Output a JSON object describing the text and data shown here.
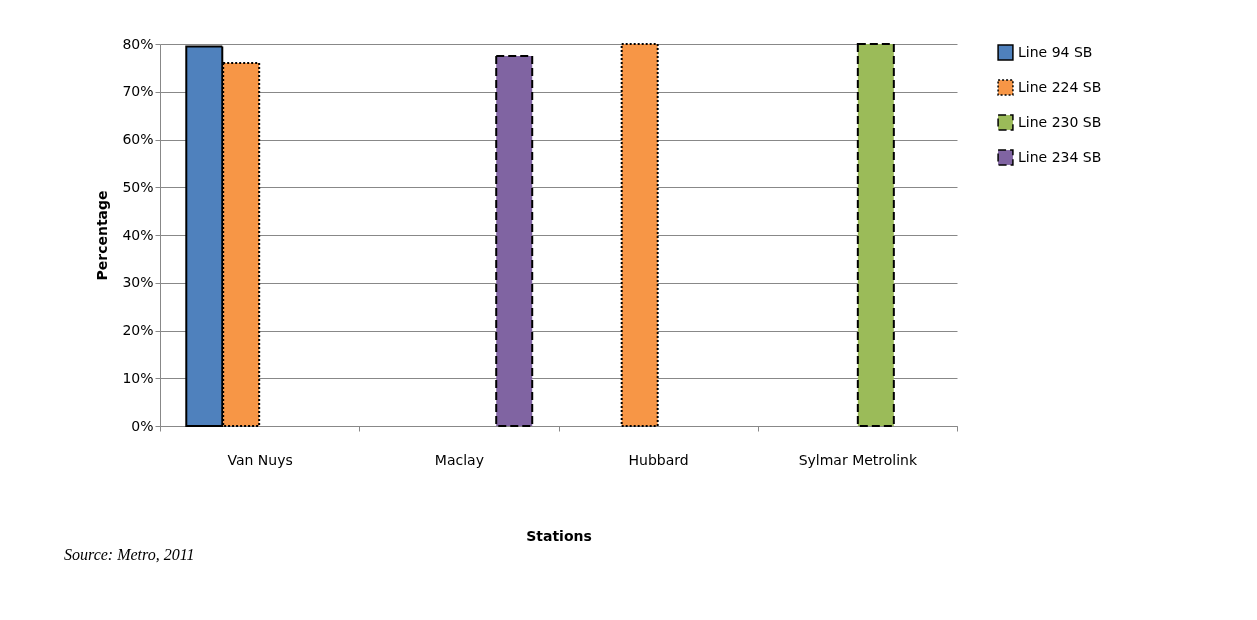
{
  "chart_data": {
    "type": "bar",
    "xlabel": "Stations",
    "ylabel": "Percentage",
    "categories": [
      "Van Nuys",
      "Maclay",
      "Hubbard",
      "Sylmar Metrolink"
    ],
    "series": [
      {
        "name": "Line 94 SB",
        "color": "#4f81bd",
        "line_style": "solid",
        "values": [
          79.5,
          null,
          null,
          null
        ]
      },
      {
        "name": "Line 224 SB",
        "color": "#f79646",
        "line_style": "dotted",
        "values": [
          76,
          null,
          80,
          null
        ]
      },
      {
        "name": "Line 230 SB",
        "color": "#9bbb59",
        "line_style": "dashed",
        "values": [
          null,
          null,
          null,
          80
        ]
      },
      {
        "name": "Line 234 SB",
        "color": "#8064a2",
        "line_style": "dashed",
        "values": [
          null,
          77.5,
          null,
          null
        ]
      }
    ],
    "ylim": [
      0,
      80
    ],
    "yticks": [
      {
        "value": 0,
        "label": "0%"
      },
      {
        "value": 10,
        "label": "10%"
      },
      {
        "value": 20,
        "label": "20%"
      },
      {
        "value": 30,
        "label": "30%"
      },
      {
        "value": 40,
        "label": "40%"
      },
      {
        "value": 50,
        "label": "50%"
      },
      {
        "value": 60,
        "label": "60%"
      },
      {
        "value": 70,
        "label": "70%"
      },
      {
        "value": 80,
        "label": "80%"
      }
    ],
    "grid": "y",
    "legend": "right",
    "annotations": [
      "Source: Metro, 2011"
    ]
  }
}
